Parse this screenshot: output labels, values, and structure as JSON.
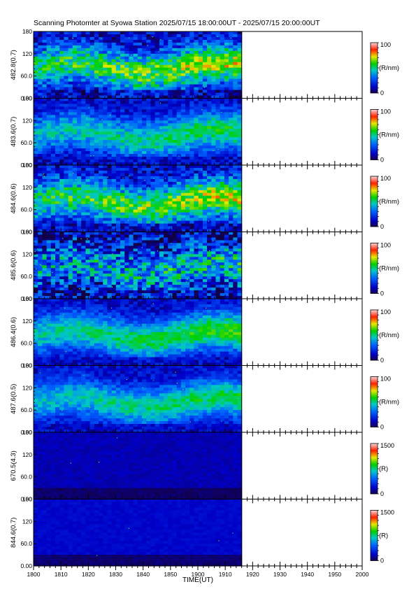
{
  "title": "Scanning Photomter at Syowa Station  2025/07/15 18:00:00UT - 2025/07/15 20:00:00UT",
  "chart_data": {
    "type": "heatmap",
    "title": "Scanning Photomter at Syowa Station  2025/07/15 18:00:00UT - 2025/07/15 20:00:00UT",
    "xlabel": "TIME(UT)",
    "x_ticks": [
      "1800",
      "1810",
      "1820",
      "1830",
      "1840",
      "1850",
      "1900",
      "1910",
      "1920",
      "1930",
      "1940",
      "1950",
      "2000"
    ],
    "x_range_minutes": [
      0,
      120
    ],
    "data_end_minute": 76,
    "y_ticks": [
      "0.00",
      "60.0",
      "120",
      "180"
    ],
    "y_range": [
      0,
      180
    ],
    "panels": [
      {
        "ylabel": "482.8(0.7)",
        "cb_max": "100",
        "cb_min": "0",
        "unit": "(R/nm)",
        "intensity": 0.5,
        "speckle": 0.3,
        "texture": "wave"
      },
      {
        "ylabel": "483.6(0.7)",
        "cb_max": "100",
        "cb_min": "0",
        "unit": "(R/nm)",
        "intensity": 0.38,
        "speckle": 0.18,
        "texture": "smooth"
      },
      {
        "ylabel": "484.6(0.6)",
        "cb_max": "100",
        "cb_min": "0",
        "unit": "(R/nm)",
        "intensity": 0.5,
        "speckle": 0.28,
        "texture": "wave"
      },
      {
        "ylabel": "485.6(0.6)",
        "cb_max": "100",
        "cb_min": "0",
        "unit": "(R/nm)",
        "intensity": 0.3,
        "speckle": 0.45,
        "texture": "speckle"
      },
      {
        "ylabel": "486.4(0.6)",
        "cb_max": "100",
        "cb_min": "0",
        "unit": "(R/nm)",
        "intensity": 0.42,
        "speckle": 0.15,
        "texture": "smooth"
      },
      {
        "ylabel": "487.6(0.5)",
        "cb_max": "100",
        "cb_min": "0",
        "unit": "(R/nm)",
        "intensity": 0.38,
        "speckle": 0.15,
        "texture": "smooth"
      },
      {
        "ylabel": "670.5(4.3)",
        "cb_max": "1500",
        "cb_min": "0",
        "unit": "(R)",
        "intensity": 0.1,
        "speckle": 0.02,
        "texture": "dark"
      },
      {
        "ylabel": "844.6(0.7)",
        "cb_max": "1500",
        "cb_min": "0",
        "unit": "(R)",
        "intensity": 0.13,
        "speckle": 0.03,
        "texture": "dark"
      }
    ]
  }
}
